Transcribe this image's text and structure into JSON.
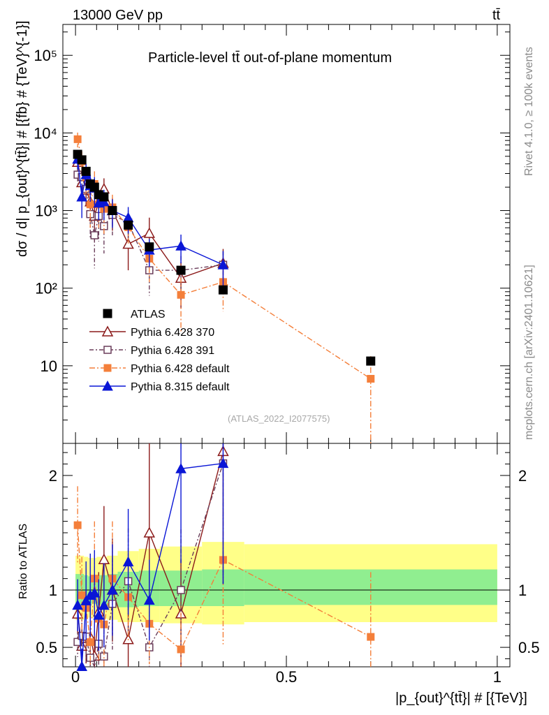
{
  "header": {
    "energy_label": "13000 GeV pp",
    "process_label": "tt̄"
  },
  "side_labels": {
    "rivet": "Rivet 4.1.0, ≥ 100k events",
    "mcplots": "mcplots.cern.ch [arXiv:2401.10621]"
  },
  "chart_data": {
    "type": "scatter",
    "title": "Particle-level tt̄ out-of-plane momentum",
    "reference": "(ATLAS_2022_I2077575)",
    "ylabel": "dσ / d| p_{out}^{tt̄}| # [{fb} # {TeV}^{-1}]",
    "xlabel": "|p_{out}^{tt̄}| # [{TeV}]",
    "ratio_ylabel": "Ratio to ATLAS",
    "xlim": [
      -0.03,
      1.03
    ],
    "ylim": [
      1.0,
      250000
    ],
    "yscale": "log",
    "ratio_ylim": [
      0.33,
      2.28
    ],
    "x_ticks": [
      {
        "value": 0,
        "label": "0"
      },
      {
        "value": 0.5,
        "label": "0.5"
      },
      {
        "value": 1,
        "label": "1"
      }
    ],
    "y_ticks": [
      {
        "value": 10,
        "label": "10"
      },
      {
        "value": 100,
        "label": "10²"
      },
      {
        "value": 1000,
        "label": "10³"
      },
      {
        "value": 10000,
        "label": "10⁴"
      },
      {
        "value": 100000,
        "label": "10⁵"
      }
    ],
    "ratio_ticks": [
      {
        "value": 0.5,
        "label": "0.5"
      },
      {
        "value": 1,
        "label": "1"
      },
      {
        "value": 2,
        "label": "2"
      }
    ],
    "bins": [
      0.0,
      0.01,
      0.02,
      0.03,
      0.04,
      0.05,
      0.06,
      0.075,
      0.1,
      0.15,
      0.2,
      0.3,
      0.4,
      1.0
    ],
    "band_inner": [
      0.86,
      0.86,
      0.87,
      0.88,
      0.88,
      0.87,
      0.87,
      0.86,
      0.85,
      0.86,
      0.86,
      0.86,
      0.87
    ],
    "band_inner_hi": [
      1.14,
      1.14,
      1.13,
      1.12,
      1.12,
      1.13,
      1.13,
      1.14,
      1.16,
      1.17,
      1.17,
      1.18,
      1.18
    ],
    "band_outer": [
      0.74,
      0.74,
      0.75,
      0.76,
      0.76,
      0.75,
      0.75,
      0.74,
      0.72,
      0.72,
      0.71,
      0.7,
      0.72
    ],
    "band_outer_hi": [
      1.3,
      1.3,
      1.29,
      1.28,
      1.28,
      1.29,
      1.29,
      1.3,
      1.34,
      1.36,
      1.38,
      1.42,
      1.4
    ],
    "series": [
      {
        "name": "ATLAS",
        "kind": "data",
        "color": "#000000",
        "marker": "square",
        "x": [
          0.005,
          0.015,
          0.025,
          0.035,
          0.045,
          0.055,
          0.0675,
          0.0875,
          0.125,
          0.175,
          0.25,
          0.35,
          0.7
        ],
        "y": [
          5300,
          4500,
          3200,
          2200,
          2000,
          1600,
          1500,
          1000,
          650,
          340,
          170,
          95,
          11.5
        ],
        "yerr": [
          350,
          300,
          220,
          160,
          140,
          110,
          100,
          70,
          45,
          25,
          15,
          9,
          1.4
        ]
      },
      {
        "name": "Pythia 6.428 370",
        "kind": "mc",
        "color": "#8b1a1a",
        "marker": "triangle-open",
        "dash": "",
        "x": [
          0.005,
          0.015,
          0.025,
          0.035,
          0.045,
          0.055,
          0.0675,
          0.0875,
          0.125,
          0.175,
          0.25,
          0.35
        ],
        "y": [
          4200,
          2300,
          1850,
          1300,
          850,
          1300,
          1900,
          1000,
          370,
          510,
          135,
          210
        ],
        "yerr": [
          900,
          800,
          700,
          550,
          450,
          550,
          700,
          450,
          200,
          300,
          80,
          110
        ]
      },
      {
        "name": "Pythia 6.428 391",
        "kind": "mc",
        "color": "#6a3d5a",
        "marker": "square-open",
        "dash": "6 3 2 3",
        "x": [
          0.005,
          0.015,
          0.025,
          0.035,
          0.045,
          0.055,
          0.0675,
          0.0875,
          0.125,
          0.175,
          0.25,
          0.35
        ],
        "y": [
          2900,
          2700,
          1900,
          900,
          480,
          850,
          630,
          880,
          700,
          170,
          170,
          200
        ],
        "yerr": [
          700,
          900,
          700,
          450,
          300,
          450,
          350,
          400,
          300,
          90,
          90,
          100
        ]
      },
      {
        "name": "Pythia 6.428 default",
        "kind": "mc",
        "color": "#f47f3a",
        "marker": "square-filled",
        "dash": "8 3 2 3",
        "x": [
          0.005,
          0.015,
          0.025,
          0.035,
          0.045,
          0.055,
          0.0675,
          0.0875,
          0.125,
          0.175,
          0.25,
          0.35,
          0.7
        ],
        "y": [
          8300,
          4300,
          2700,
          1200,
          2200,
          1200,
          1050,
          1100,
          610,
          240,
          82,
          120,
          6.8
        ],
        "yerr": [
          1800,
          1500,
          1100,
          600,
          1000,
          600,
          550,
          500,
          250,
          120,
          55,
          70,
          6.5
        ]
      },
      {
        "name": "Pythia 8.315 default",
        "kind": "mc",
        "color": "#0a16d6",
        "marker": "triangle-filled",
        "dash": "",
        "x": [
          0.005,
          0.015,
          0.025,
          0.035,
          0.045,
          0.055,
          0.0675,
          0.0875,
          0.125,
          0.175,
          0.25,
          0.35
        ],
        "y": [
          4600,
          1500,
          2900,
          2100,
          1950,
          1250,
          1300,
          1000,
          810,
          310,
          350,
          200
        ],
        "yerr": [
          1200,
          700,
          1100,
          800,
          750,
          500,
          550,
          400,
          300,
          120,
          140,
          100
        ]
      }
    ]
  }
}
